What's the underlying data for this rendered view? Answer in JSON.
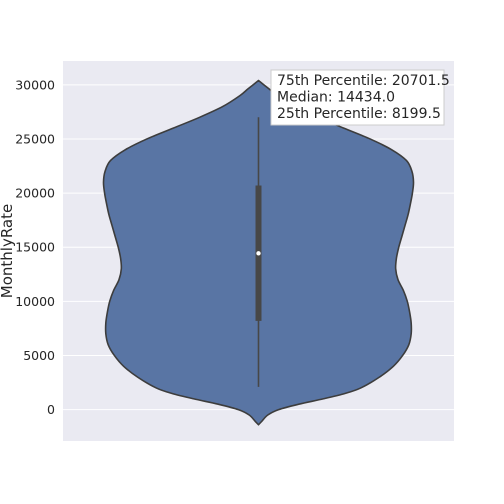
{
  "chart_data": {
    "type": "violin",
    "title": "",
    "xlabel": "",
    "ylabel": "MonthlyRate",
    "ylim": [
      -2900,
      32200
    ],
    "yticks": [
      0,
      5000,
      10000,
      15000,
      20000,
      25000,
      30000
    ],
    "grid": true,
    "colors": {
      "background": "#eaeaf2",
      "body": "#5975a4",
      "outline": "#3d3d3d",
      "inner": "#474747",
      "median": "#ffffff",
      "grid": "#ffffff"
    },
    "distribution": {
      "min": 2094,
      "q1": 8199.5,
      "median": 14434.0,
      "q3": 20701.5,
      "max": 26999,
      "kde_range": [
        -1400,
        30400
      ]
    },
    "density_profile": [
      {
        "y": -1400,
        "w": 0.0
      },
      {
        "y": -1100,
        "w": 0.02
      },
      {
        "y": -500,
        "w": 0.06
      },
      {
        "y": 0,
        "w": 0.13
      },
      {
        "y": 500,
        "w": 0.26
      },
      {
        "y": 1000,
        "w": 0.42
      },
      {
        "y": 1500,
        "w": 0.56
      },
      {
        "y": 2000,
        "w": 0.66
      },
      {
        "y": 3000,
        "w": 0.78
      },
      {
        "y": 4000,
        "w": 0.87
      },
      {
        "y": 5000,
        "w": 0.93
      },
      {
        "y": 6000,
        "w": 0.97
      },
      {
        "y": 7000,
        "w": 0.985
      },
      {
        "y": 8000,
        "w": 0.985
      },
      {
        "y": 9000,
        "w": 0.975
      },
      {
        "y": 10000,
        "w": 0.96
      },
      {
        "y": 11000,
        "w": 0.935
      },
      {
        "y": 12000,
        "w": 0.9
      },
      {
        "y": 13000,
        "w": 0.885
      },
      {
        "y": 14000,
        "w": 0.89
      },
      {
        "y": 15000,
        "w": 0.905
      },
      {
        "y": 16000,
        "w": 0.925
      },
      {
        "y": 17000,
        "w": 0.945
      },
      {
        "y": 18000,
        "w": 0.965
      },
      {
        "y": 19000,
        "w": 0.98
      },
      {
        "y": 20000,
        "w": 0.993
      },
      {
        "y": 21000,
        "w": 1.0
      },
      {
        "y": 22000,
        "w": 0.99
      },
      {
        "y": 23000,
        "w": 0.955
      },
      {
        "y": 24000,
        "w": 0.86
      },
      {
        "y": 25000,
        "w": 0.72
      },
      {
        "y": 26000,
        "w": 0.55
      },
      {
        "y": 27000,
        "w": 0.38
      },
      {
        "y": 28000,
        "w": 0.23
      },
      {
        "y": 29000,
        "w": 0.12
      },
      {
        "y": 29600,
        "w": 0.07
      },
      {
        "y": 30000,
        "w": 0.035
      },
      {
        "y": 30400,
        "w": 0.0
      }
    ],
    "annotation": {
      "lines": [
        "75th Percentile: 20701.5",
        "Median: 14434.0",
        "25th Percentile: 8199.5"
      ],
      "placement": "top-right"
    }
  }
}
